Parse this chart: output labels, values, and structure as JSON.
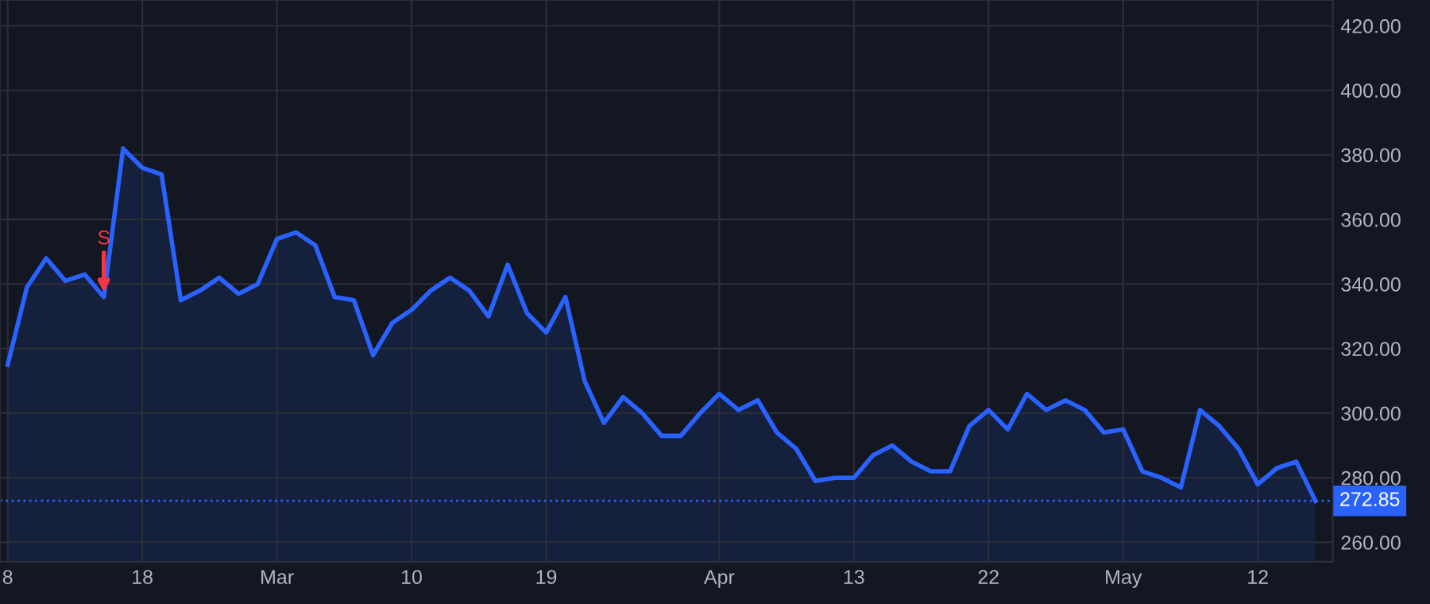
{
  "chart_data": {
    "type": "area",
    "color": "#2962ff",
    "categories": [
      "8",
      null,
      null,
      null,
      null,
      null,
      null,
      "18",
      null,
      null,
      null,
      null,
      null,
      null,
      "Mar",
      null,
      null,
      null,
      null,
      null,
      null,
      "10",
      null,
      null,
      null,
      null,
      null,
      null,
      "19",
      null,
      null,
      null,
      null,
      null,
      null,
      null,
      null,
      "Apr",
      null,
      null,
      null,
      null,
      null,
      null,
      "13",
      null,
      null,
      null,
      null,
      null,
      null,
      "22",
      null,
      null,
      null,
      null,
      null,
      null,
      "May",
      null,
      null,
      null,
      null,
      null,
      null,
      "12",
      null,
      null,
      null
    ],
    "values": [
      315,
      339,
      348,
      341,
      343,
      336,
      382,
      376,
      374,
      335,
      338,
      342,
      337,
      340,
      354,
      356,
      352,
      336,
      335,
      318,
      328,
      332,
      338,
      342,
      338,
      330,
      346,
      331,
      325,
      336,
      310,
      297,
      305,
      300,
      293,
      293,
      300,
      306,
      301,
      304,
      294,
      289,
      279,
      280,
      280,
      287,
      290,
      285,
      282,
      282,
      296,
      301,
      295,
      306,
      301,
      304,
      301,
      294,
      295,
      282,
      280,
      277,
      301,
      296,
      289,
      278,
      283,
      285,
      272.85
    ],
    "ylim": [
      254,
      428
    ],
    "yticks": [
      {
        "value": 260,
        "label": "260.00"
      },
      {
        "value": 280,
        "label": "280.00"
      },
      {
        "value": 300,
        "label": "300.00"
      },
      {
        "value": 320,
        "label": "320.00"
      },
      {
        "value": 340,
        "label": "340.00"
      },
      {
        "value": 360,
        "label": "360.00"
      },
      {
        "value": 380,
        "label": "380.00"
      },
      {
        "value": 400,
        "label": "400.00"
      },
      {
        "value": 420,
        "label": "420.00"
      }
    ],
    "ref_lines": [
      {
        "axis": "y",
        "value": 272.85,
        "label": "272.85",
        "color": "#2962ff",
        "line_style": "dotted"
      }
    ],
    "annotations": [
      {
        "text": "S",
        "y": 336
      }
    ],
    "grid": true
  }
}
